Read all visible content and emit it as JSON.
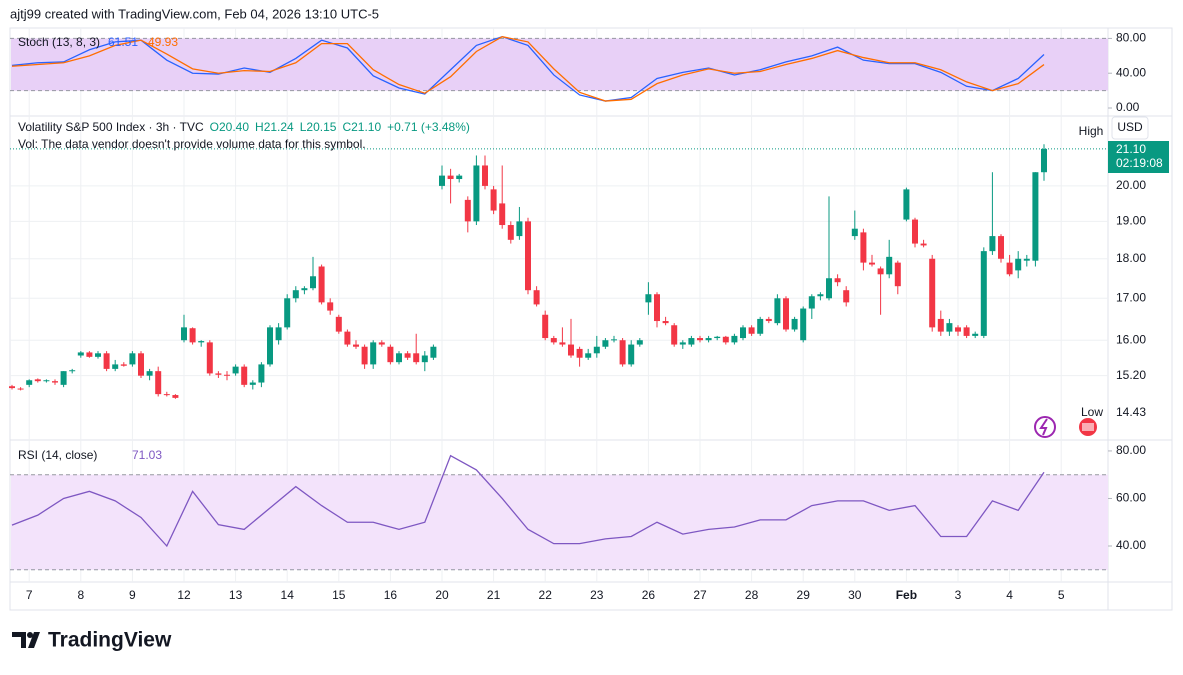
{
  "header": {
    "author": "ajtj99 created with TradingView.com, Feb 04, 2026 13:10 UTC-5"
  },
  "footer": {
    "logo": "TradingView"
  },
  "chart_data": [
    {
      "type": "candlestick",
      "title": "Volatility S&P 500 Index · 3h · TVC",
      "ohlc_text": [
        "O20.40",
        "H21.24",
        "L20.15",
        "C21.10",
        "+0.71 (+3.48%)"
      ],
      "note": "Vol: The data vendor doesn't provide volume data for this symbol.",
      "currency": "USD",
      "high_label": "High",
      "low_label": "Low",
      "low_value": "14.43",
      "last_price": "21.10",
      "countdown": "02:19:08",
      "dates": [
        "7",
        "8",
        "9",
        "12",
        "13",
        "14",
        "15",
        "16",
        "20",
        "21",
        "22",
        "23",
        "26",
        "27",
        "28",
        "29",
        "30",
        "Feb",
        "3",
        "4",
        "5"
      ],
      "up_color": "#089981",
      "down_color": "#f23645",
      "log": true,
      "grid": true,
      "ylim": [
        13.85,
        22.0
      ],
      "yticks": [
        {
          "value": 15.2,
          "label": "15.20"
        },
        {
          "value": 16,
          "label": "16.00"
        },
        {
          "value": 17,
          "label": "17.00"
        },
        {
          "value": 18,
          "label": "18.00"
        },
        {
          "value": 19,
          "label": "19.00"
        },
        {
          "value": 20,
          "label": "20.00"
        }
      ],
      "candles": [
        [
          14.97,
          15.0,
          14.9,
          14.93
        ],
        [
          14.92,
          14.95,
          14.88,
          14.9
        ],
        [
          15.0,
          15.12,
          14.95,
          15.1
        ],
        [
          15.12,
          15.14,
          15.05,
          15.08
        ],
        [
          15.08,
          15.12,
          15.05,
          15.1
        ],
        [
          15.08,
          15.12,
          15.0,
          15.05
        ],
        [
          15.0,
          15.3,
          14.95,
          15.3
        ],
        [
          15.3,
          15.35,
          15.25,
          15.32
        ],
        [
          15.65,
          15.75,
          15.6,
          15.72
        ],
        [
          15.72,
          15.75,
          15.6,
          15.62
        ],
        [
          15.62,
          15.75,
          15.58,
          15.7
        ],
        [
          15.7,
          15.75,
          15.3,
          15.35
        ],
        [
          15.35,
          15.55,
          15.3,
          15.45
        ],
        [
          15.45,
          15.5,
          15.4,
          15.42
        ],
        [
          15.45,
          15.75,
          15.4,
          15.7
        ],
        [
          15.7,
          15.75,
          15.15,
          15.2
        ],
        [
          15.2,
          15.35,
          15.1,
          15.3
        ],
        [
          15.3,
          15.4,
          14.75,
          14.8
        ],
        [
          14.8,
          14.85,
          14.75,
          14.78
        ],
        [
          14.78,
          14.8,
          14.7,
          14.72
        ],
        [
          16.0,
          16.6,
          15.95,
          16.3
        ],
        [
          16.28,
          16.3,
          15.9,
          15.95
        ],
        [
          15.95,
          16.0,
          15.85,
          15.98
        ],
        [
          15.95,
          16.0,
          15.2,
          15.25
        ],
        [
          15.25,
          15.3,
          15.15,
          15.22
        ],
        [
          15.22,
          15.3,
          15.1,
          15.2
        ],
        [
          15.25,
          15.45,
          15.2,
          15.4
        ],
        [
          15.4,
          15.45,
          14.95,
          15.0
        ],
        [
          15.0,
          15.1,
          14.9,
          15.05
        ],
        [
          15.05,
          15.5,
          14.95,
          15.45
        ],
        [
          15.45,
          16.35,
          15.4,
          16.3
        ],
        [
          16.0,
          16.4,
          15.9,
          16.3
        ],
        [
          16.3,
          17.1,
          16.25,
          17.0
        ],
        [
          17.0,
          17.3,
          16.9,
          17.2
        ],
        [
          17.2,
          17.3,
          17.1,
          17.25
        ],
        [
          17.25,
          18.05,
          17.2,
          17.55
        ],
        [
          17.8,
          17.85,
          16.85,
          16.9
        ],
        [
          16.9,
          17.0,
          16.6,
          16.7
        ],
        [
          16.55,
          16.6,
          16.15,
          16.2
        ],
        [
          16.2,
          16.25,
          15.85,
          15.9
        ],
        [
          15.9,
          16.0,
          15.8,
          15.85
        ],
        [
          15.85,
          15.9,
          15.35,
          15.45
        ],
        [
          15.45,
          16.0,
          15.35,
          15.95
        ],
        [
          15.95,
          16.0,
          15.85,
          15.9
        ],
        [
          15.85,
          15.9,
          15.45,
          15.5
        ],
        [
          15.5,
          15.75,
          15.45,
          15.7
        ],
        [
          15.7,
          15.75,
          15.55,
          15.6
        ],
        [
          15.7,
          16.15,
          15.45,
          15.5
        ],
        [
          15.5,
          15.75,
          15.3,
          15.65
        ],
        [
          15.6,
          15.9,
          15.55,
          15.85
        ],
        [
          20.0,
          20.6,
          19.9,
          20.3
        ],
        [
          20.3,
          20.5,
          19.5,
          20.2
        ],
        [
          20.2,
          20.35,
          20.1,
          20.3
        ],
        [
          19.6,
          19.7,
          18.7,
          19.0
        ],
        [
          19.0,
          20.9,
          18.9,
          20.6
        ],
        [
          20.6,
          20.9,
          19.9,
          20.0
        ],
        [
          19.9,
          20.0,
          19.2,
          19.3
        ],
        [
          19.5,
          20.6,
          18.8,
          18.9
        ],
        [
          18.9,
          19.0,
          18.4,
          18.5
        ],
        [
          18.6,
          19.4,
          18.5,
          19.0
        ],
        [
          19.0,
          19.1,
          17.1,
          17.2
        ],
        [
          17.2,
          17.3,
          16.8,
          16.85
        ],
        [
          16.6,
          16.7,
          16.0,
          16.05
        ],
        [
          16.05,
          16.1,
          15.9,
          15.95
        ],
        [
          15.95,
          16.3,
          15.85,
          15.9
        ],
        [
          15.9,
          16.5,
          15.6,
          15.65
        ],
        [
          15.8,
          15.85,
          15.4,
          15.6
        ],
        [
          15.6,
          15.8,
          15.55,
          15.7
        ],
        [
          15.7,
          16.1,
          15.6,
          15.85
        ],
        [
          15.85,
          16.05,
          15.8,
          16.0
        ],
        [
          16.0,
          16.1,
          15.95,
          16.02
        ],
        [
          16.0,
          16.05,
          15.4,
          15.45
        ],
        [
          15.45,
          16.0,
          15.4,
          15.9
        ],
        [
          15.9,
          16.05,
          15.85,
          16.0
        ],
        [
          16.9,
          17.4,
          16.6,
          17.1
        ],
        [
          17.1,
          17.15,
          16.3,
          16.45
        ],
        [
          16.45,
          16.55,
          16.35,
          16.4
        ],
        [
          16.35,
          16.4,
          15.85,
          15.9
        ],
        [
          15.9,
          16.0,
          15.8,
          15.95
        ],
        [
          15.9,
          16.1,
          15.85,
          16.05
        ],
        [
          16.05,
          16.1,
          15.95,
          16.0
        ],
        [
          16.0,
          16.1,
          15.95,
          16.05
        ],
        [
          16.05,
          16.1,
          16.0,
          16.08
        ],
        [
          16.08,
          16.1,
          15.9,
          15.95
        ],
        [
          15.95,
          16.15,
          15.9,
          16.1
        ],
        [
          16.05,
          16.35,
          16.0,
          16.3
        ],
        [
          16.3,
          16.35,
          16.1,
          16.15
        ],
        [
          16.15,
          16.55,
          16.1,
          16.5
        ],
        [
          16.5,
          16.55,
          16.4,
          16.45
        ],
        [
          16.4,
          17.1,
          16.35,
          17.0
        ],
        [
          17.0,
          17.05,
          16.2,
          16.25
        ],
        [
          16.25,
          16.55,
          16.2,
          16.5
        ],
        [
          16.0,
          16.8,
          15.95,
          16.75
        ],
        [
          16.75,
          17.1,
          16.5,
          17.05
        ],
        [
          17.05,
          17.15,
          16.95,
          17.1
        ],
        [
          17.0,
          19.7,
          16.95,
          17.5
        ],
        [
          17.5,
          17.6,
          17.3,
          17.4
        ],
        [
          17.2,
          17.3,
          16.8,
          16.9
        ],
        [
          18.6,
          19.3,
          18.5,
          18.8
        ],
        [
          18.7,
          18.8,
          17.7,
          17.9
        ],
        [
          17.9,
          18.1,
          17.8,
          17.85
        ],
        [
          17.75,
          17.8,
          16.6,
          17.6
        ],
        [
          17.6,
          18.5,
          17.5,
          18.05
        ],
        [
          17.9,
          17.95,
          17.1,
          17.3
        ],
        [
          19.05,
          19.95,
          19.0,
          19.9
        ],
        [
          19.05,
          19.1,
          18.3,
          18.4
        ],
        [
          18.4,
          18.5,
          18.3,
          18.35
        ],
        [
          18.0,
          18.1,
          16.2,
          16.3
        ],
        [
          16.5,
          16.7,
          16.1,
          16.2
        ],
        [
          16.2,
          16.5,
          16.1,
          16.4
        ],
        [
          16.3,
          16.35,
          16.1,
          16.2
        ],
        [
          16.3,
          16.35,
          16.05,
          16.1
        ],
        [
          16.1,
          16.2,
          16.05,
          16.15
        ],
        [
          16.1,
          18.3,
          16.05,
          18.2
        ],
        [
          18.2,
          20.4,
          18.1,
          18.6
        ],
        [
          18.6,
          18.65,
          17.9,
          18.0
        ],
        [
          17.9,
          18.1,
          17.55,
          17.6
        ],
        [
          17.7,
          18.2,
          17.5,
          18.0
        ],
        [
          17.95,
          18.1,
          17.8,
          18.0
        ],
        [
          17.95,
          20.4,
          17.8,
          20.4
        ],
        [
          20.4,
          21.24,
          20.15,
          21.1
        ]
      ]
    },
    {
      "type": "line",
      "title": "Stoch (13, 8, 3)",
      "band": [
        20,
        80
      ],
      "band_color": "#e8d0f7",
      "ylim": [
        -4.6,
        92
      ],
      "yticks": [
        {
          "value": 0,
          "label": "0.00"
        },
        {
          "value": 40,
          "label": "40.00"
        },
        {
          "value": 80,
          "label": "80.00"
        }
      ],
      "x": [
        0,
        3,
        6,
        9,
        12,
        15,
        18,
        21,
        24,
        27,
        30,
        33,
        36,
        39,
        42,
        45,
        48,
        51,
        54,
        57,
        60,
        63,
        66,
        69,
        72,
        75,
        78,
        81,
        84,
        87,
        90,
        93,
        96,
        99,
        102,
        105,
        108,
        111,
        114,
        117,
        120
      ],
      "series": [
        {
          "color": "#2962ff",
          "values": [
            49,
            52,
            53,
            67,
            76,
            78,
            55,
            40,
            39,
            46,
            41,
            57,
            78,
            69,
            37,
            23,
            16,
            44,
            72,
            82,
            72,
            38,
            15,
            8,
            12,
            34,
            41,
            46,
            38,
            44,
            53,
            60,
            70,
            55,
            51,
            51,
            41,
            25,
            20,
            34,
            61.51
          ]
        },
        {
          "color": "#ff6d00",
          "values": [
            48,
            50,
            52,
            60,
            72,
            78,
            62,
            45,
            40,
            43,
            42,
            52,
            74,
            74,
            44,
            27,
            17,
            36,
            65,
            82,
            76,
            45,
            18,
            8,
            10,
            28,
            38,
            45,
            40,
            42,
            50,
            57,
            66,
            58,
            52,
            52,
            44,
            30,
            20,
            28,
            49.93
          ]
        }
      ]
    },
    {
      "type": "line",
      "title": "RSI (14, close)",
      "band": [
        30,
        70
      ],
      "band_color": "#f3e3fb",
      "ylim": [
        25.7,
        84.6
      ],
      "yticks": [
        {
          "value": 40,
          "label": "40.00"
        },
        {
          "value": 60,
          "label": "60.00"
        },
        {
          "value": 80,
          "label": "80.00"
        }
      ],
      "x": [
        0,
        3,
        6,
        9,
        12,
        15,
        18,
        21,
        24,
        27,
        30,
        33,
        36,
        39,
        42,
        45,
        48,
        51,
        54,
        57,
        60,
        63,
        66,
        69,
        72,
        75,
        78,
        81,
        84,
        87,
        90,
        93,
        96,
        99,
        102,
        105,
        108,
        111,
        114,
        117,
        120
      ],
      "series": [
        {
          "color": "#7e57c2",
          "values": [
            48.8,
            53,
            60,
            63,
            59,
            52,
            40,
            63,
            49,
            47,
            56,
            65,
            57,
            50,
            50,
            47,
            50,
            78,
            72,
            60,
            47,
            41,
            41,
            43,
            44,
            50,
            45,
            47,
            48,
            51,
            51,
            57,
            59,
            59,
            55,
            57,
            44,
            44,
            59,
            55,
            71.03
          ]
        }
      ]
    }
  ]
}
